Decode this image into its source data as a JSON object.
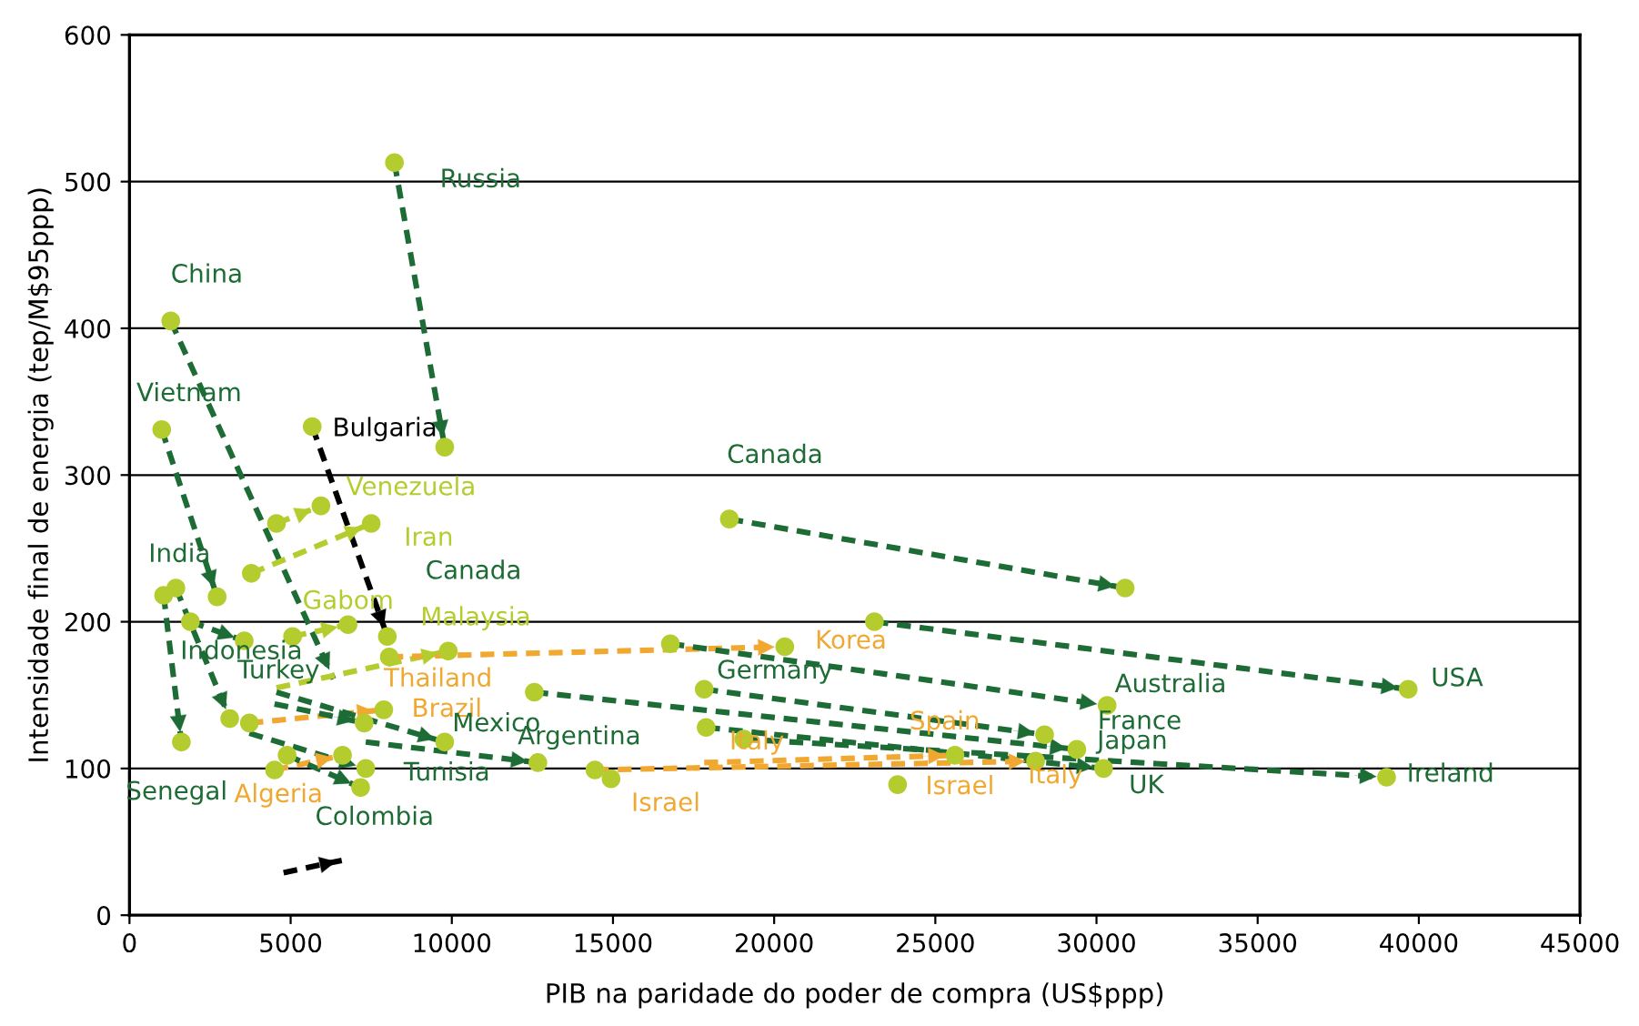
{
  "chart_data": {
    "type": "line",
    "xlabel": "PIB na paridade do poder de compra (US$ppp)",
    "ylabel": "Intensidade final de energia (tep/M$95ppp)",
    "xlim": [
      0,
      45000
    ],
    "xticks": [
      0,
      5000,
      10000,
      15000,
      20000,
      25000,
      30000,
      35000,
      40000,
      45000
    ],
    "ylim": [
      0,
      600
    ],
    "yticks": [
      0,
      100,
      200,
      300,
      400,
      500,
      600
    ],
    "grid": "y",
    "line_style": "dashed",
    "series": [
      {
        "color": "#1d6b35",
        "x": [
          8220,
          9780
        ],
        "values": [
          513,
          319
        ]
      },
      {
        "color": "#1d6b35",
        "x": [
          1280,
          6330
        ],
        "values": [
          405,
          161
        ]
      },
      {
        "color": "#1d6b35",
        "x": [
          1000,
          2720
        ],
        "values": [
          331,
          217
        ]
      },
      {
        "color": "#000000",
        "x": [
          5670,
          8000
        ],
        "values": [
          333,
          190
        ]
      },
      {
        "color": "#b5cc2e",
        "x": [
          4560,
          5940
        ],
        "values": [
          267,
          279
        ]
      },
      {
        "color": "#b5cc2e",
        "x": [
          3780,
          7500
        ],
        "values": [
          233,
          267
        ]
      },
      {
        "color": "#1d6b35",
        "x": [
          18610,
          30890
        ],
        "values": [
          270,
          223
        ]
      },
      {
        "color": "#1d6b35",
        "x": [
          1060,
          1610
        ],
        "values": [
          218,
          118
        ]
      },
      {
        "color": "#1d6b35",
        "x": [
          1440,
          3110
        ],
        "values": [
          223,
          134
        ]
      },
      {
        "color": "#1d6b35",
        "x": [
          1890,
          3560
        ],
        "values": [
          200,
          187
        ]
      },
      {
        "color": "#b5cc2e",
        "x": [
          5060,
          6780
        ],
        "values": [
          190,
          198
        ]
      },
      {
        "color": "#b5cc2e",
        "x": [
          4560,
          9890
        ],
        "values": [
          155,
          180
        ]
      },
      {
        "color": "#f0a830",
        "x": [
          8060,
          20330
        ],
        "values": [
          176,
          183
        ]
      },
      {
        "color": "#f0a830",
        "x": [
          3720,
          7890
        ],
        "values": [
          131,
          140
        ]
      },
      {
        "color": "#f0a830",
        "x": [
          4500,
          6610
        ],
        "values": [
          99,
          109
        ]
      },
      {
        "color": "#1d6b35",
        "x": [
          4560,
          9780
        ],
        "values": [
          152,
          118
        ]
      },
      {
        "color": "#1d6b35",
        "x": [
          4500,
          7280
        ],
        "values": [
          144,
          131
        ]
      },
      {
        "color": "#1d6b35",
        "x": [
          3720,
          7330
        ],
        "values": [
          124,
          100
        ]
      },
      {
        "color": "#1d6b35",
        "x": [
          4890,
          7170
        ],
        "values": [
          109,
          87
        ]
      },
      {
        "color": "#1d6b35",
        "x": [
          7330,
          12670
        ],
        "values": [
          118,
          104
        ]
      },
      {
        "color": "#000000",
        "x": [
          4780,
          6720
        ],
        "values": [
          29,
          38
        ]
      },
      {
        "color": "#1d6b35",
        "x": [
          23110,
          39670
        ],
        "values": [
          200,
          154
        ]
      },
      {
        "color": "#1d6b35",
        "x": [
          16780,
          30330
        ],
        "values": [
          185,
          143
        ]
      },
      {
        "color": "#1d6b35",
        "x": [
          17830,
          28390
        ],
        "values": [
          154,
          123
        ]
      },
      {
        "color": "#1d6b35",
        "x": [
          12560,
          29390
        ],
        "values": [
          152,
          113
        ]
      },
      {
        "color": "#1d6b35",
        "x": [
          17890,
          30220
        ],
        "values": [
          128,
          100
        ]
      },
      {
        "color": "#1d6b35",
        "x": [
          19060,
          39000
        ],
        "values": [
          120,
          94
        ]
      },
      {
        "color": "#f0a830",
        "x": [
          17830,
          25610
        ],
        "values": [
          104,
          109
        ]
      },
      {
        "color": "#f0a830",
        "x": [
          14440,
          28110
        ],
        "values": [
          99,
          105
        ]
      },
      {
        "type": "scatter",
        "marker": "circle",
        "color": "#b5cc2e",
        "x": [
          8220,
          9780,
          1280,
          1000,
          2720,
          5670,
          8000,
          4560,
          5940,
          3780,
          7500,
          18610,
          30890,
          1060,
          1610,
          1440,
          3110,
          1890,
          3560,
          5060,
          6780,
          9890,
          8060,
          20330,
          3720,
          7890,
          4500,
          6610,
          9780,
          7280,
          7330,
          4890,
          7170,
          12670,
          23110,
          39670,
          16780,
          30330,
          17830,
          28390,
          12560,
          29390,
          17890,
          30220,
          19060,
          39000,
          25610,
          14440,
          28110,
          14940,
          23830
        ],
        "values": [
          513,
          319,
          405,
          331,
          217,
          333,
          190,
          267,
          279,
          233,
          267,
          270,
          223,
          218,
          118,
          223,
          134,
          200,
          187,
          190,
          198,
          180,
          176,
          183,
          131,
          140,
          99,
          109,
          118,
          131,
          100,
          109,
          87,
          104,
          200,
          154,
          185,
          143,
          154,
          123,
          152,
          113,
          128,
          100,
          120,
          94,
          109,
          99,
          105,
          93,
          89
        ]
      }
    ],
    "annotations": [
      {
        "text": "Russia",
        "x": 8220,
        "y": 513
      },
      {
        "text": "China",
        "x": 1280,
        "y": 405
      },
      {
        "text": "Vietnam",
        "x": 1000,
        "y": 331
      },
      {
        "text": "Bulgaria",
        "x": 5670,
        "y": 333
      },
      {
        "text": "Venezuela",
        "x": 5940,
        "y": 279
      },
      {
        "text": "Iran",
        "x": 7500,
        "y": 267
      },
      "Canada",
      {
        "text": "Canada",
        "x": 18610,
        "y": 270
      },
      {
        "text": "India",
        "x": 1060,
        "y": 218
      },
      {
        "text": "Gabom",
        "x": 6780,
        "y": 198
      },
      {
        "text": "Malaysia",
        "x": 9890,
        "y": 180
      },
      {
        "text": "Indonesia",
        "x": 1890,
        "y": 200
      },
      {
        "text": "Turkey",
        "x": 6330,
        "y": 161
      },
      {
        "text": "Thailand",
        "x": 7890,
        "y": 140
      },
      {
        "text": "Brazil",
        "x": 7890,
        "y": 140
      },
      {
        "text": "Mexico",
        "x": 9780,
        "y": 118
      },
      {
        "text": "Argentina",
        "x": 12670,
        "y": 104
      },
      {
        "text": "Tunisia",
        "x": 7330,
        "y": 100
      },
      {
        "text": "Senegal",
        "x": 1610,
        "y": 118
      },
      {
        "text": "Algeria",
        "x": 4500,
        "y": 99
      },
      {
        "text": "Colombia",
        "x": 7170,
        "y": 87
      },
      {
        "text": "Israel",
        "x": 14940,
        "y": 93
      },
      {
        "text": "Korea",
        "x": 20330,
        "y": 183
      },
      {
        "text": "Germany",
        "x": 17830,
        "y": 154
      },
      {
        "text": "Australia",
        "x": 30330,
        "y": 143
      },
      {
        "text": "USA",
        "x": 39670,
        "y": 154
      },
      {
        "text": "France",
        "x": 28390,
        "y": 123
      },
      {
        "text": "Japan",
        "x": 29390,
        "y": 113
      },
      {
        "text": "Spain",
        "x": 25610,
        "y": 109
      },
      {
        "text": "Italy",
        "x": 17830,
        "y": 104
      },
      {
        "text": "Italy",
        "x": 28110,
        "y": 105
      },
      {
        "text": "UK",
        "x": 30220,
        "y": 100
      },
      {
        "text": "Ireland",
        "x": 39000,
        "y": 94
      },
      {
        "text": "Israel",
        "x": 23830,
        "y": 89
      }
    ]
  }
}
